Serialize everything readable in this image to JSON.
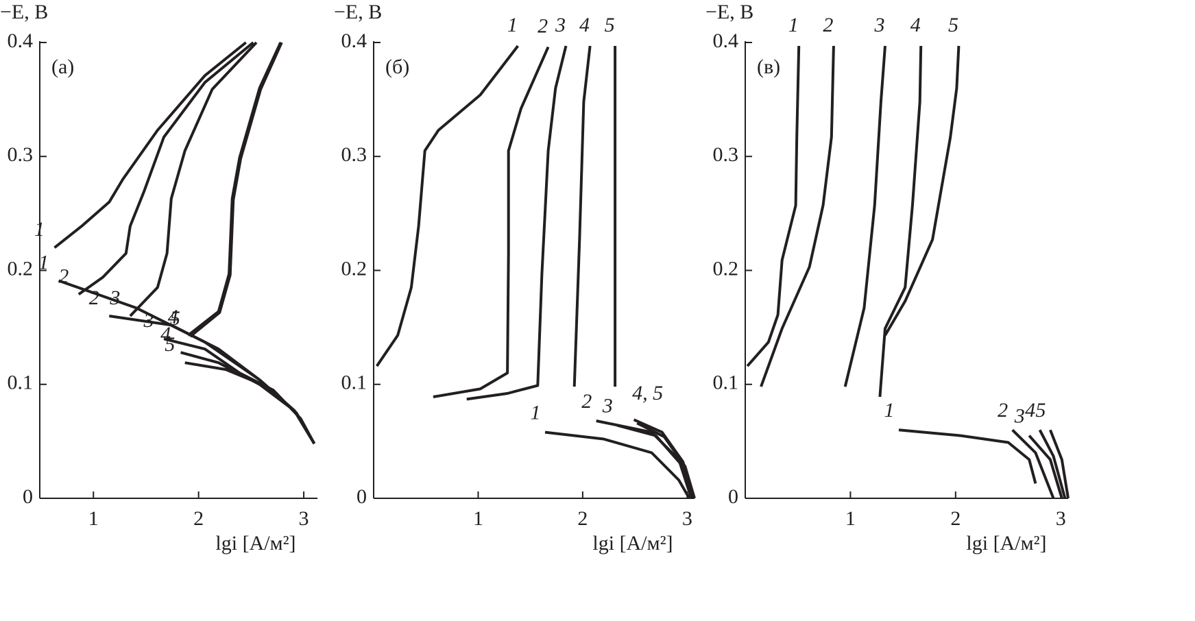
{
  "chart_data": [
    {
      "type": "line",
      "panel_label": "(а)",
      "y_label": "−E, В",
      "x_label": "lgi [A/м²]",
      "xlim": [
        0.49,
        3.13
      ],
      "ylim": [
        0,
        0.4
      ],
      "xticks": [
        1,
        2,
        3
      ],
      "yticks": [
        0,
        0.1,
        0.2,
        0.3,
        0.4
      ],
      "series": [
        {
          "name": "1",
          "color": "#231f20",
          "x": [
            0.63,
            0.89,
            1.15,
            1.28,
            1.61,
            2.06,
            2.45,
            null,
            0.67,
            1.41,
            2.06,
            2.58,
            2.91,
            3.1
          ],
          "values": [
            0.22,
            0.239,
            0.26,
            0.28,
            0.323,
            0.371,
            0.4,
            null,
            0.191,
            0.167,
            0.137,
            0.104,
            0.077,
            0.048
          ]
        },
        {
          "name": "2",
          "color": "#231f20",
          "x": [
            0.86,
            1.09,
            1.31,
            1.35,
            1.48,
            1.67,
            2.06,
            2.52,
            null,
            1.15,
            1.74,
            2.19,
            2.58,
            2.91,
            3.1
          ],
          "values": [
            0.179,
            0.194,
            0.215,
            0.239,
            0.269,
            0.317,
            0.365,
            0.4,
            null,
            0.16,
            0.152,
            0.131,
            0.104,
            0.077,
            0.048
          ]
        },
        {
          "name": "3",
          "color": "#231f20",
          "x": [
            1.35,
            1.61,
            1.7,
            1.74,
            1.87,
            2.13,
            2.55,
            null,
            1.67,
            2.06,
            2.39,
            2.71,
            2.97,
            3.1
          ],
          "values": [
            0.16,
            0.185,
            0.215,
            0.263,
            0.305,
            0.359,
            0.4,
            null,
            0.14,
            0.131,
            0.11,
            0.095,
            0.07,
            0.048
          ]
        },
        {
          "name": "4",
          "color": "#231f20",
          "x": [
            1.9,
            2.19,
            2.29,
            2.32,
            2.39,
            2.58,
            2.78,
            null,
            1.83,
            2.19,
            2.58,
            2.91,
            3.1
          ],
          "values": [
            0.143,
            0.164,
            0.197,
            0.263,
            0.299,
            0.36,
            0.4,
            null,
            0.128,
            0.119,
            0.1,
            0.077,
            0.048
          ]
        },
        {
          "name": "5",
          "color": "#231f20",
          "x": [
            1.92,
            2.2,
            2.3,
            2.33,
            2.4,
            2.59,
            2.79,
            null,
            1.87,
            2.26,
            2.65,
            2.93,
            3.1
          ],
          "values": [
            0.142,
            0.163,
            0.196,
            0.262,
            0.298,
            0.359,
            0.4,
            null,
            0.119,
            0.113,
            0.098,
            0.075,
            0.048
          ]
        }
      ]
    },
    {
      "type": "line",
      "panel_label": "(б)",
      "y_label": "−E, В",
      "x_label": "lgi [A/м²]",
      "xlim": [
        0,
        3.07
      ],
      "ylim": [
        0,
        0.4
      ],
      "xticks": [
        1,
        2,
        3
      ],
      "yticks": [
        0,
        0.1,
        0.2,
        0.3,
        0.4
      ],
      "annotations": [
        "4, 5"
      ],
      "series": [
        {
          "name": "1",
          "color": "#231f20",
          "x": [
            0.03,
            0.23,
            0.36,
            0.43,
            0.49,
            0.62,
            1.02,
            1.38,
            null,
            1.64,
            2.2,
            2.66,
            2.92,
            3.02
          ],
          "values": [
            0.116,
            0.143,
            0.185,
            0.239,
            0.305,
            0.323,
            0.354,
            0.397,
            null,
            0.058,
            0.052,
            0.04,
            0.016,
            0
          ]
        },
        {
          "name": "2",
          "color": "#231f20",
          "x": [
            0.57,
            1.02,
            1.28,
            1.29,
            1.29,
            1.41,
            1.67,
            null,
            2.13,
            2.66,
            2.92,
            3.04
          ],
          "values": [
            0.089,
            0.096,
            0.11,
            0.215,
            0.305,
            0.342,
            0.396,
            null,
            0.068,
            0.058,
            0.034,
            0
          ]
        },
        {
          "name": "3",
          "color": "#231f20",
          "x": [
            0.89,
            1.28,
            1.57,
            1.61,
            1.67,
            1.74,
            1.84,
            null,
            2.33,
            2.7,
            2.94,
            3.05
          ],
          "values": [
            0.087,
            0.092,
            0.099,
            0.197,
            0.305,
            0.36,
            0.397,
            null,
            0.064,
            0.055,
            0.03,
            0
          ]
        },
        {
          "name": "4",
          "color": "#231f20",
          "x": [
            1.92,
            1.97,
            2.01,
            2.07,
            null,
            2.49,
            2.76,
            2.96,
            3.06
          ],
          "values": [
            0.098,
            0.227,
            0.348,
            0.397,
            null,
            0.069,
            0.058,
            0.032,
            0
          ]
        },
        {
          "name": "5",
          "color": "#231f20",
          "x": [
            2.31,
            2.31,
            null,
            2.52,
            2.78,
            2.98,
            3.07
          ],
          "values": [
            0.098,
            0.397,
            null,
            0.066,
            0.054,
            0.028,
            0
          ]
        }
      ]
    },
    {
      "type": "line",
      "panel_label": "(в)",
      "y_label": "−E, В",
      "x_label": "lgi [A/м²]",
      "xlim": [
        0,
        3.07
      ],
      "ylim": [
        0,
        0.4
      ],
      "xticks": [
        1,
        2,
        3
      ],
      "yticks": [
        0,
        0.1,
        0.2,
        0.3,
        0.4
      ],
      "series": [
        {
          "name": "1",
          "color": "#231f20",
          "x": [
            0.02,
            0.22,
            0.31,
            0.35,
            0.48,
            0.49,
            0.51,
            null,
            1.46,
            2.05,
            2.5,
            2.7,
            2.76
          ],
          "values": [
            0.116,
            0.137,
            0.161,
            0.209,
            0.257,
            0.317,
            0.397,
            null,
            0.06,
            0.055,
            0.049,
            0.034,
            0.013
          ]
        },
        {
          "name": "2",
          "color": "#231f20",
          "x": [
            0.15,
            0.35,
            0.61,
            0.74,
            0.82,
            0.84,
            null,
            2.54,
            2.76,
            2.93
          ],
          "values": [
            0.098,
            0.149,
            0.203,
            0.257,
            0.317,
            0.397,
            null,
            0.06,
            0.04,
            0
          ]
        },
        {
          "name": "3",
          "color": "#231f20",
          "x": [
            0.95,
            1.13,
            1.23,
            1.29,
            1.33,
            null,
            2.7,
            2.9,
            3.01
          ],
          "values": [
            0.098,
            0.167,
            0.257,
            0.348,
            0.397,
            null,
            0.055,
            0.034,
            0
          ]
        },
        {
          "name": "4",
          "color": "#231f20",
          "x": [
            1.28,
            1.33,
            1.52,
            1.59,
            1.66,
            1.67,
            null,
            2.8,
            2.93,
            3.04
          ],
          "values": [
            0.089,
            0.149,
            0.185,
            0.257,
            0.348,
            0.397,
            null,
            0.06,
            0.037,
            0
          ]
        },
        {
          "name": "5",
          "color": "#231f20",
          "x": [
            1.33,
            1.52,
            1.78,
            1.95,
            2.01,
            2.03,
            null,
            2.9,
            3.01,
            3.07
          ],
          "values": [
            0.143,
            0.173,
            0.227,
            0.317,
            0.36,
            0.397,
            null,
            0.06,
            0.034,
            0
          ]
        }
      ]
    }
  ]
}
